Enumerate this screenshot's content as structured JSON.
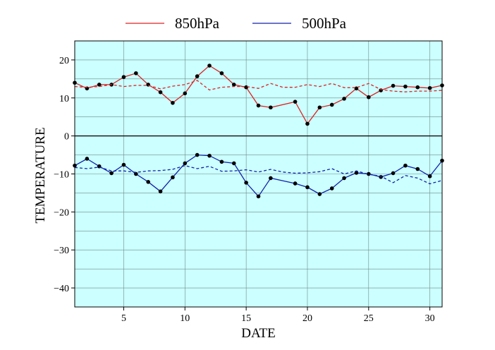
{
  "chart_data": {
    "type": "line",
    "xlabel": "DATE",
    "ylabel": "TEMPERATURE",
    "xlim": [
      1,
      31
    ],
    "ylim": [
      -45,
      25
    ],
    "x_ticks": [
      5,
      10,
      15,
      20,
      25,
      30
    ],
    "y_ticks": [
      -40,
      -30,
      -20,
      -10,
      0,
      10,
      20
    ],
    "grid": true,
    "background": "#ccffff",
    "legend_position": "top",
    "x": [
      1,
      2,
      3,
      4,
      5,
      6,
      7,
      8,
      9,
      10,
      11,
      12,
      13,
      14,
      15,
      16,
      17,
      18,
      19,
      20,
      21,
      22,
      23,
      24,
      25,
      26,
      27,
      28,
      29,
      30,
      31
    ],
    "series": [
      {
        "name": "850hPa",
        "color": "#dd2222",
        "style": "solid",
        "markers": true,
        "values": [
          14,
          12.5,
          13.5,
          13.5,
          15.5,
          16.5,
          13.5,
          11.5,
          8.7,
          11.2,
          15.7,
          18.5,
          16.5,
          13.5,
          12.8,
          8,
          7.5,
          null,
          9,
          3.2,
          7.5,
          8.2,
          9.8,
          12.5,
          10.2,
          12,
          13.2,
          13,
          12.8,
          12.6,
          13.3
        ]
      },
      {
        "name": "",
        "color": "#dd2222",
        "style": "dashed",
        "markers": false,
        "values": [
          13,
          12.8,
          13,
          13.5,
          13,
          13.3,
          13.3,
          12.4,
          13.1,
          13.5,
          14.6,
          12.1,
          12.8,
          13,
          13,
          12.5,
          13.8,
          12.8,
          12.8,
          13.5,
          13,
          13.8,
          12.7,
          12.7,
          13.8,
          12.2,
          11.8,
          11.6,
          11.8,
          11.8,
          12
        ]
      },
      {
        "name": "500hPa",
        "color": "#1122aa",
        "style": "solid",
        "markers": true,
        "values": [
          -7.8,
          -6,
          -8,
          -9.8,
          -7.6,
          -10,
          -12.1,
          -14.6,
          -10.9,
          -7.2,
          -5,
          -5.2,
          -6.8,
          -7.2,
          -12.3,
          -15.9,
          -11.1,
          null,
          -12.5,
          -13.5,
          -15.3,
          -13.8,
          -11.1,
          -9.7,
          -10,
          -10.8,
          -9.8,
          -7.8,
          -8.7,
          -10.6,
          -6.5
        ]
      },
      {
        "name": "",
        "color": "#1122aa",
        "style": "dashed",
        "markers": false,
        "values": [
          -8.3,
          -8.6,
          -8.2,
          -9.2,
          -9.2,
          -9.6,
          -9.2,
          -9.1,
          -8.8,
          -7.8,
          -8.6,
          -8,
          -9.3,
          -9.2,
          -8.9,
          -9.5,
          -8.8,
          -9.5,
          -9.8,
          -9.7,
          -9.4,
          -8.6,
          -10,
          -9.2,
          -10.1,
          -10.6,
          -12.3,
          -10.4,
          -11.1,
          -12.6,
          -11.7
        ]
      }
    ]
  }
}
